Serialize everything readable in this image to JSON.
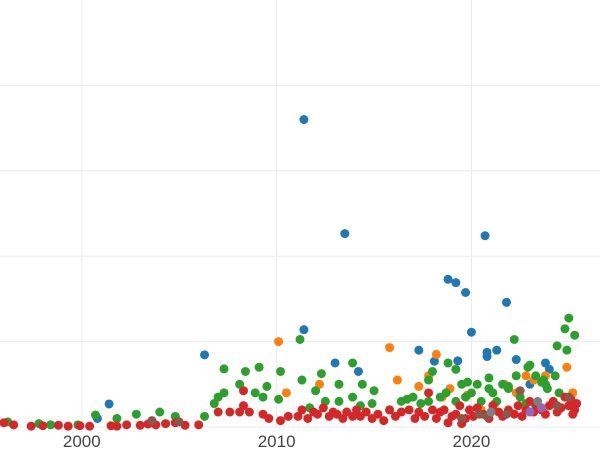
{
  "chart_data": {
    "type": "scatter",
    "title": "",
    "xlabel": "",
    "ylabel": "",
    "xlim": [
      1995.8,
      2026.6
    ],
    "ylim": [
      0,
      100
    ],
    "grid": true,
    "legend": "none",
    "x_ticks": [
      2000,
      2010,
      2020
    ],
    "x_tick_labels": [
      "2000",
      "2010",
      "2020"
    ],
    "y_gridlines": [
      0,
      20,
      40,
      60,
      80
    ],
    "series": [
      {
        "color": "#1f77b4",
        "points": [
          [
            2000.8,
            2
          ],
          [
            2001.4,
            5.4
          ],
          [
            2006.3,
            16.9
          ],
          [
            2011.4,
            22.8
          ],
          [
            2011.4,
            72
          ],
          [
            2013.0,
            15
          ],
          [
            2013.5,
            45.3
          ],
          [
            2014.2,
            13
          ],
          [
            2017.3,
            18
          ],
          [
            2018.1,
            15.4
          ],
          [
            2018.8,
            34.6
          ],
          [
            2019.2,
            33.8
          ],
          [
            2019.3,
            15.5
          ],
          [
            2019.7,
            31.5
          ],
          [
            2020.0,
            22.2
          ],
          [
            2020.7,
            44.8
          ],
          [
            2020.8,
            17.5
          ],
          [
            2020.8,
            16.5
          ],
          [
            2021.3,
            18
          ],
          [
            2021.8,
            29.2
          ],
          [
            2022.3,
            15.8
          ],
          [
            2023.0,
            10
          ],
          [
            2023.3,
            5
          ],
          [
            2023.8,
            15
          ],
          [
            2024.0,
            13.5
          ]
        ]
      },
      {
        "color": "#ff7f0e",
        "points": [
          [
            2010.1,
            20
          ],
          [
            2010.5,
            8
          ],
          [
            2012.2,
            10
          ],
          [
            2015.8,
            18.6
          ],
          [
            2016.2,
            11
          ],
          [
            2017.3,
            9.5
          ],
          [
            2017.8,
            12
          ],
          [
            2018.2,
            17
          ],
          [
            2018.5,
            7
          ],
          [
            2018.9,
            9
          ],
          [
            2019.8,
            7.5
          ],
          [
            2020.5,
            4
          ],
          [
            2021.2,
            5.5
          ],
          [
            2021.7,
            10
          ],
          [
            2022.3,
            8
          ],
          [
            2022.8,
            12
          ],
          [
            2023.2,
            11
          ],
          [
            2023.8,
            12
          ],
          [
            2024.2,
            6
          ],
          [
            2024.9,
            14
          ],
          [
            2025.2,
            8
          ]
        ]
      },
      {
        "color": "#2ca02c",
        "points": [
          [
            1996.2,
            1.2
          ],
          [
            1997.8,
            0.8
          ],
          [
            1998.4,
            0.5
          ],
          [
            1999.8,
            0.5
          ],
          [
            2000.7,
            2.8
          ],
          [
            2001.8,
            2
          ],
          [
            2002.8,
            3
          ],
          [
            2004.0,
            3.5
          ],
          [
            2004.8,
            2.5
          ],
          [
            2006.3,
            2.5
          ],
          [
            2006.8,
            5.5
          ],
          [
            2007.0,
            7
          ],
          [
            2007.3,
            13.6
          ],
          [
            2007.3,
            8
          ],
          [
            2008.1,
            10
          ],
          [
            2008.4,
            13
          ],
          [
            2008.9,
            8
          ],
          [
            2009.1,
            14
          ],
          [
            2009.3,
            7
          ],
          [
            2009.5,
            9.5
          ],
          [
            2010.1,
            6.5
          ],
          [
            2010.2,
            13
          ],
          [
            2011.2,
            20.5
          ],
          [
            2011.3,
            11
          ],
          [
            2011.7,
            4.5
          ],
          [
            2012.0,
            8.5
          ],
          [
            2012.3,
            12.5
          ],
          [
            2012.5,
            6
          ],
          [
            2013.2,
            6
          ],
          [
            2013.2,
            10
          ],
          [
            2013.9,
            15
          ],
          [
            2013.9,
            7
          ],
          [
            2014.3,
            5
          ],
          [
            2014.4,
            10
          ],
          [
            2014.9,
            5.5
          ],
          [
            2015.0,
            8.5
          ],
          [
            2015.8,
            4
          ],
          [
            2016.4,
            6
          ],
          [
            2016.7,
            6.5
          ],
          [
            2017.0,
            7
          ],
          [
            2017.4,
            5.5
          ],
          [
            2017.8,
            6
          ],
          [
            2017.8,
            11
          ],
          [
            2018.0,
            13
          ],
          [
            2018.4,
            7
          ],
          [
            2018.7,
            8
          ],
          [
            2018.8,
            15
          ],
          [
            2019.2,
            6
          ],
          [
            2019.2,
            13.5
          ],
          [
            2019.5,
            10
          ],
          [
            2019.7,
            7
          ],
          [
            2019.8,
            10.5
          ],
          [
            2020.0,
            8
          ],
          [
            2020.3,
            10
          ],
          [
            2020.5,
            6
          ],
          [
            2020.9,
            11.5
          ],
          [
            2020.9,
            9
          ],
          [
            2021.1,
            8
          ],
          [
            2021.3,
            6
          ],
          [
            2021.6,
            10
          ],
          [
            2021.9,
            9
          ],
          [
            2021.9,
            9.5
          ],
          [
            2022.2,
            20.5
          ],
          [
            2022.3,
            12
          ],
          [
            2022.5,
            7
          ],
          [
            2022.8,
            5.5
          ],
          [
            2022.9,
            14
          ],
          [
            2023.0,
            14.5
          ],
          [
            2023.3,
            12
          ],
          [
            2023.6,
            10.5
          ],
          [
            2023.7,
            11
          ],
          [
            2023.8,
            10
          ],
          [
            2023.9,
            9
          ],
          [
            2024.3,
            12
          ],
          [
            2024.4,
            19
          ],
          [
            2024.5,
            8
          ],
          [
            2024.8,
            23
          ],
          [
            2024.9,
            18
          ],
          [
            2025.0,
            25.5
          ],
          [
            2025.3,
            21.5
          ]
        ]
      },
      {
        "color": "#d62728",
        "points": [
          [
            1996.0,
            1
          ],
          [
            1996.5,
            0.5
          ],
          [
            1997.4,
            0.2
          ],
          [
            1998.0,
            0.3
          ],
          [
            1998.8,
            0.4
          ],
          [
            1999.3,
            0.2
          ],
          [
            1999.9,
            0.3
          ],
          [
            2000.4,
            0.2
          ],
          [
            2001.5,
            0.3
          ],
          [
            2001.8,
            0.2
          ],
          [
            2002.3,
            0.5
          ],
          [
            2003.0,
            0.4
          ],
          [
            2003.4,
            0.7
          ],
          [
            2003.8,
            0.5
          ],
          [
            2004.3,
            0.8
          ],
          [
            2004.8,
            1
          ],
          [
            2005.3,
            0.4
          ],
          [
            2006.0,
            0.5
          ],
          [
            2007.0,
            3.5
          ],
          [
            2007.6,
            3.5
          ],
          [
            2008.1,
            3.5
          ],
          [
            2008.3,
            5
          ],
          [
            2008.3,
            8.5
          ],
          [
            2008.6,
            3.5
          ],
          [
            2009.3,
            3
          ],
          [
            2009.6,
            2
          ],
          [
            2010.2,
            1.5
          ],
          [
            2010.6,
            2.5
          ],
          [
            2011.1,
            2.5
          ],
          [
            2011.3,
            4
          ],
          [
            2011.6,
            2
          ],
          [
            2011.9,
            3.5
          ],
          [
            2012.1,
            3
          ],
          [
            2012.4,
            4.5
          ],
          [
            2012.7,
            2.5
          ],
          [
            2012.9,
            3.5
          ],
          [
            2013.1,
            3
          ],
          [
            2013.4,
            2
          ],
          [
            2013.6,
            3.5
          ],
          [
            2013.9,
            2.5
          ],
          [
            2014.1,
            4
          ],
          [
            2014.3,
            2.5
          ],
          [
            2014.6,
            3.5
          ],
          [
            2014.9,
            2
          ],
          [
            2015.2,
            3
          ],
          [
            2015.5,
            1.5
          ],
          [
            2015.8,
            4
          ],
          [
            2016.1,
            2.5
          ],
          [
            2016.4,
            3.5
          ],
          [
            2016.8,
            4
          ],
          [
            2017.1,
            2
          ],
          [
            2017.3,
            3.5
          ],
          [
            2017.6,
            2.5
          ],
          [
            2017.8,
            8
          ],
          [
            2018.0,
            4
          ],
          [
            2018.2,
            2
          ],
          [
            2018.4,
            3.5
          ],
          [
            2018.6,
            4
          ],
          [
            2018.8,
            1
          ],
          [
            2019.0,
            2.5
          ],
          [
            2019.2,
            3
          ],
          [
            2019.4,
            5
          ],
          [
            2019.5,
            0.8
          ],
          [
            2019.7,
            2
          ],
          [
            2019.9,
            4
          ],
          [
            2020.1,
            2.5
          ],
          [
            2020.3,
            4.5
          ],
          [
            2020.6,
            3
          ],
          [
            2020.9,
            2
          ],
          [
            2021.1,
            5
          ],
          [
            2021.4,
            3.5
          ],
          [
            2021.6,
            2.5
          ],
          [
            2021.9,
            4
          ],
          [
            2022.2,
            3
          ],
          [
            2022.4,
            5
          ],
          [
            2022.6,
            2.5
          ],
          [
            2022.8,
            4
          ],
          [
            2023.0,
            6
          ],
          [
            2023.2,
            3.5
          ],
          [
            2023.4,
            5
          ],
          [
            2023.6,
            4
          ],
          [
            2023.8,
            3
          ],
          [
            2024.0,
            5
          ],
          [
            2024.2,
            6
          ],
          [
            2024.4,
            3.5
          ],
          [
            2024.6,
            4.5
          ],
          [
            2024.8,
            7
          ],
          [
            2025.0,
            5
          ],
          [
            2025.1,
            6.5
          ],
          [
            2025.3,
            4
          ],
          [
            2025.4,
            5.5
          ],
          [
            2025.2,
            3
          ]
        ]
      },
      {
        "color": "#9467bd",
        "points": [
          [
            2023.0,
            3.5
          ],
          [
            2023.6,
            4.5
          ]
        ]
      },
      {
        "color": "#8c564b",
        "points": [
          [
            2003.6,
            1.5
          ],
          [
            2005.0,
            1.2
          ],
          [
            2019.5,
            2
          ],
          [
            2020.4,
            3
          ],
          [
            2020.8,
            2.5
          ],
          [
            2021.8,
            3
          ],
          [
            2022.5,
            8.5
          ],
          [
            2024.4,
            5
          ],
          [
            2025.0,
            7
          ]
        ]
      },
      {
        "color": "#7f7f7f",
        "points": [
          [
            2021.0,
            3.5
          ],
          [
            2023.4,
            6
          ]
        ]
      }
    ]
  }
}
